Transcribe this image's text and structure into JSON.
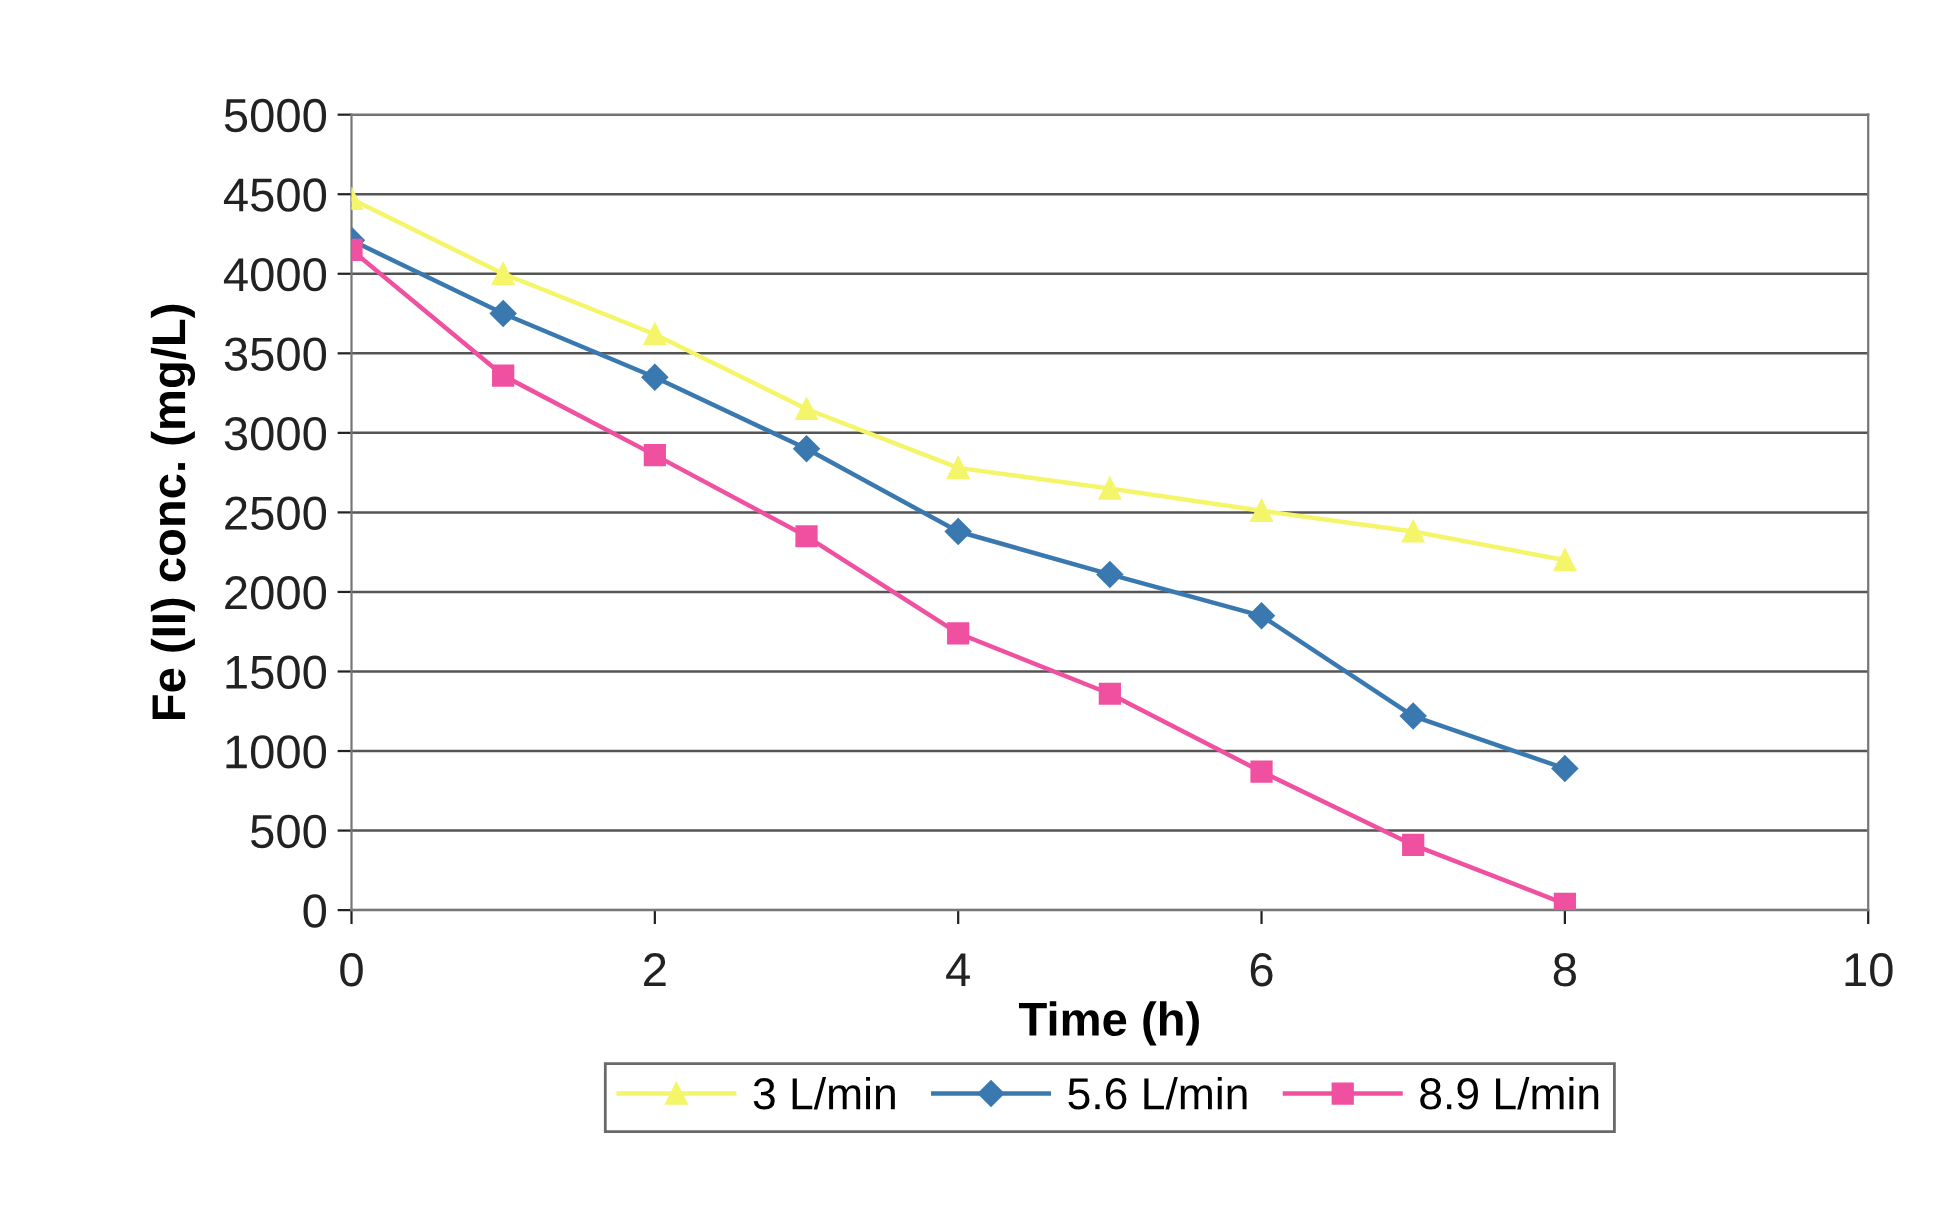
{
  "chart_data": {
    "type": "line",
    "xlabel": "Time (h)",
    "ylabel": "Fe (II) conc. (mg/L)",
    "x": [
      0,
      1,
      2,
      3,
      4,
      5,
      6,
      7,
      8
    ],
    "series": [
      {
        "name": "3 L/min",
        "color": "#f5f56a",
        "marker": "triangle",
        "values": [
          4470,
          4000,
          3620,
          3150,
          2780,
          2650,
          2510,
          2380,
          2200
        ]
      },
      {
        "name": "5.6 L/min",
        "color": "#3a78b0",
        "marker": "diamond",
        "values": [
          4210,
          3750,
          3350,
          2900,
          2380,
          2110,
          1850,
          1220,
          890
        ]
      },
      {
        "name": "8.9 L/min",
        "color": "#f050a0",
        "marker": "square",
        "values": [
          4150,
          3360,
          2860,
          2350,
          1740,
          1360,
          870,
          410,
          40
        ]
      }
    ],
    "xlim": [
      0,
      10
    ],
    "xticks": [
      0,
      2,
      4,
      6,
      8,
      10
    ],
    "ylim": [
      0,
      5000
    ],
    "yticks": [
      0,
      500,
      1000,
      1500,
      2000,
      2500,
      3000,
      3500,
      4000,
      4500,
      5000
    ],
    "grid": "y",
    "legend": "bottom",
    "line_style": "solid"
  }
}
